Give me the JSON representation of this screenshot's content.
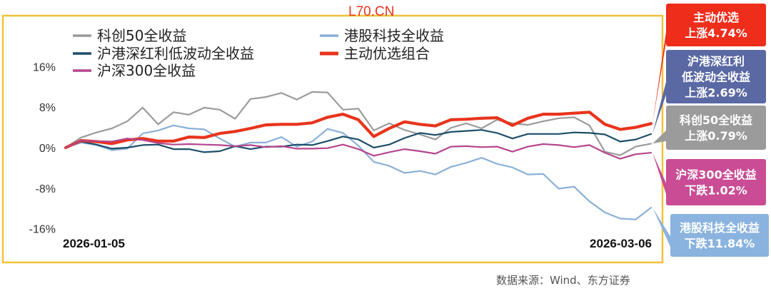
{
  "watermark": "L70.CN",
  "source": "数据来源：Wind、东方证券",
  "chart_data": {
    "type": "line",
    "ylim": [
      -18,
      20
    ],
    "yticks": [
      -16,
      -8,
      0,
      8,
      16
    ],
    "ytick_labels": [
      "-16%",
      "-8%",
      "0%",
      "8%",
      "16%"
    ],
    "xtick_labels": [
      "2026-01-05",
      "2026-03-06"
    ],
    "grid": false,
    "legend_position": "top-left",
    "series": [
      {
        "name": "科创50全收益",
        "color": "#9b9b9b",
        "width": 2.2,
        "values": [
          0,
          2,
          3,
          3.8,
          5.2,
          7.9,
          4.6,
          7,
          6.5,
          7.9,
          7.5,
          5.7,
          9.6,
          10,
          10.8,
          9.5,
          11,
          10.9,
          7.5,
          7.7,
          3.4,
          4.8,
          3.5,
          2.6,
          1.6,
          3.9,
          4.8,
          3.8,
          5.5,
          4.8,
          4.5,
          5.2,
          5.8,
          6,
          4.4,
          -0.8,
          -1.5,
          0.2,
          0.79
        ]
      },
      {
        "name": "港股科技全收益",
        "color": "#8ab0d8",
        "width": 2.2,
        "values": [
          0,
          1,
          0.5,
          -0.5,
          -0.2,
          2.8,
          3.4,
          4.4,
          3.8,
          3.6,
          1.8,
          0.2,
          1,
          1,
          2.1,
          0.2,
          1.2,
          3.7,
          2.9,
          0.4,
          -2.8,
          -3.6,
          -5,
          -4.6,
          -5.3,
          -3.8,
          -3,
          -2,
          -3.2,
          -3.9,
          -5.3,
          -5.2,
          -8.1,
          -7.7,
          -10.6,
          -12.8,
          -14,
          -14.2,
          -11.84
        ]
      },
      {
        "name": "沪港深红利低波动全收益",
        "color": "#1d4e68",
        "width": 2.2,
        "values": [
          0,
          1.2,
          0.6,
          -0.2,
          0,
          0.5,
          0.6,
          -0.3,
          -0.3,
          -0.9,
          -0.7,
          0.3,
          -0.3,
          0.2,
          0.2,
          0.6,
          0.5,
          1.3,
          2.2,
          1.6,
          0,
          0.6,
          1.9,
          2.9,
          2.5,
          3.1,
          3.3,
          3.5,
          2.9,
          1.8,
          2.7,
          2.7,
          2.7,
          3,
          2.9,
          2.6,
          1.2,
          1.6,
          2.69
        ]
      },
      {
        "name": "主动优选组合",
        "color": "#e8341c",
        "width": 4.2,
        "values": [
          0,
          1.4,
          1.2,
          0.8,
          1.5,
          1.8,
          1.3,
          1.3,
          2.1,
          2,
          2.8,
          3.2,
          3.8,
          4.5,
          4.6,
          4.6,
          4.9,
          6,
          6.6,
          5.5,
          2.2,
          3.8,
          5.1,
          4.6,
          4.3,
          5.5,
          5.6,
          5.8,
          5.9,
          4.4,
          5.8,
          6.6,
          6.6,
          6.8,
          7,
          4.6,
          3.6,
          4,
          4.74
        ]
      },
      {
        "name": "沪深300全收益",
        "color": "#b5468d",
        "width": 2.2,
        "values": [
          0,
          1.4,
          1.3,
          1.2,
          1.8,
          1.5,
          0.9,
          0.6,
          0.7,
          0.6,
          0.5,
          0.3,
          0.5,
          0.1,
          0.3,
          -0.2,
          -0.2,
          -0.1,
          0.6,
          -0.3,
          -1.6,
          -0.9,
          -0.3,
          -0.7,
          -1.2,
          0.2,
          0.3,
          0.1,
          0.2,
          -0.8,
          0.2,
          0.7,
          0.5,
          0.1,
          0.5,
          -1,
          -2.2,
          -1.3,
          -1.02
        ]
      }
    ],
    "annotations": [
      {
        "series": "主动优选组合",
        "line1": "主动优选",
        "line2": "上涨4.74%",
        "color": "#ee2d1b"
      },
      {
        "series": "沪港深红利低波动全收益",
        "line1": "沪港深红利",
        "line2": "低波动全收益",
        "line3": "上涨2.69%",
        "color": "#5a68a4"
      },
      {
        "series": "科创50全收益",
        "line1": "科创50全收益",
        "line2": "上涨0.79%",
        "color": "#9b9b9b"
      },
      {
        "series": "沪深300全收益",
        "line1": "沪深300全收益",
        "line2": "下跌1.02%",
        "color": "#c94c94"
      },
      {
        "series": "港股科技全收益",
        "line1": "港股科技全收益",
        "line2": "下跌11.84%",
        "color": "#8ab3df"
      }
    ]
  }
}
